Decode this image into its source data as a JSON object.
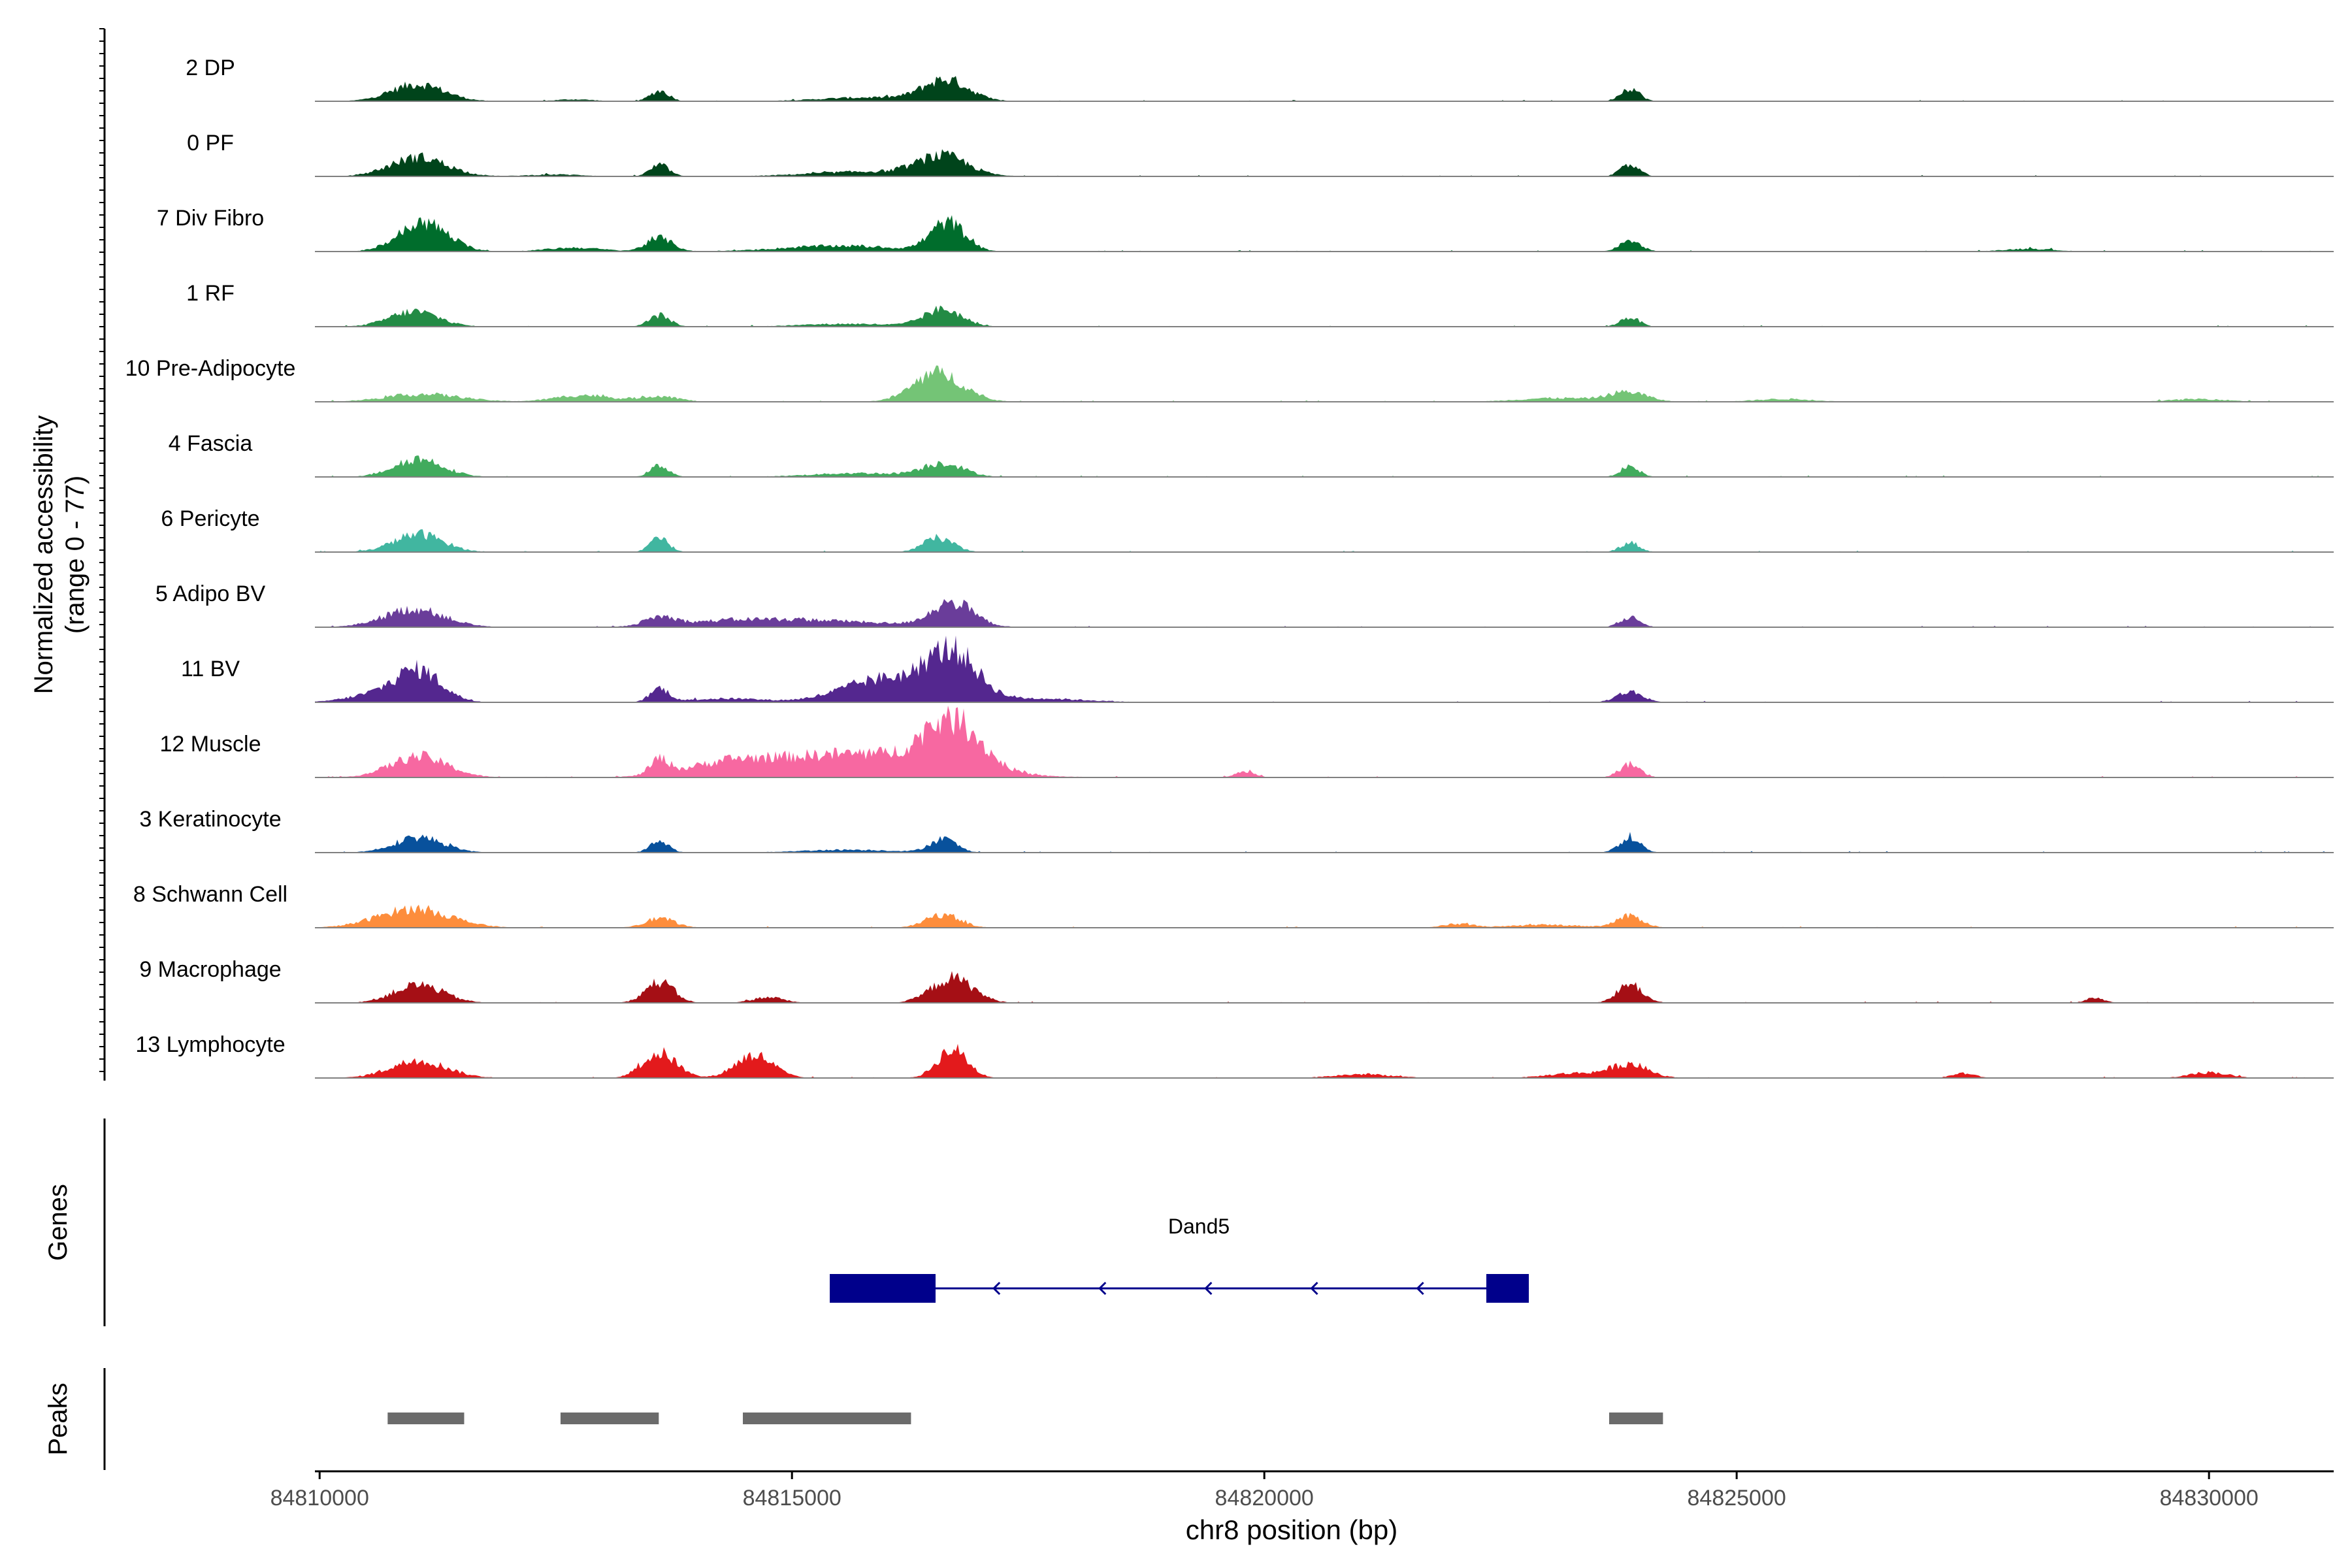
{
  "chart_data": {
    "type": "area",
    "title": "",
    "ylabel_line1": "Normalized accessibility",
    "ylabel_line2": "(range 0 - 77)",
    "xlabel": "chr8 position (bp)",
    "xlim": [
      84809950,
      84831320
    ],
    "ylim": [
      0,
      77
    ],
    "x_ticks": [
      {
        "value": 84810000,
        "label": "84810000"
      },
      {
        "value": 84815000,
        "label": "84815000"
      },
      {
        "value": 84820000,
        "label": "84820000"
      },
      {
        "value": 84825000,
        "label": "84825000"
      },
      {
        "value": 84830000,
        "label": "84830000"
      }
    ],
    "tracks": [
      {
        "name": "2 DP",
        "color": "#00441b",
        "peaks": [
          [
            84811040,
            18,
            280
          ],
          [
            84813600,
            11,
            100
          ],
          [
            84816630,
            22,
            240
          ],
          [
            84823870,
            14,
            100
          ],
          [
            84815800,
            4,
            500
          ],
          [
            84812700,
            2,
            200
          ]
        ]
      },
      {
        "name": "0 PF",
        "color": "#00441b",
        "peaks": [
          [
            84811050,
            20,
            300
          ],
          [
            84813600,
            12,
            100
          ],
          [
            84816600,
            20,
            260
          ],
          [
            84823870,
            12,
            100
          ],
          [
            84815800,
            5,
            600
          ],
          [
            84812500,
            2,
            300
          ]
        ]
      },
      {
        "name": "7 Div Fibro",
        "color": "#006d2c",
        "peaks": [
          [
            84811100,
            30,
            260
          ],
          [
            84813600,
            14,
            140
          ],
          [
            84816650,
            30,
            180
          ],
          [
            84823870,
            10,
            120
          ],
          [
            84815500,
            6,
            600
          ],
          [
            84812700,
            4,
            300
          ],
          [
            84828100,
            3,
            250
          ]
        ]
      },
      {
        "name": "1 RF",
        "color": "#238b45",
        "peaks": [
          [
            84811000,
            16,
            260
          ],
          [
            84813600,
            12,
            110
          ],
          [
            84816600,
            18,
            200
          ],
          [
            84823870,
            10,
            100
          ],
          [
            84815600,
            3,
            500
          ]
        ]
      },
      {
        "name": "10 Pre-Adipocyte",
        "color": "#74c476",
        "peaks": [
          [
            84811100,
            8,
            400
          ],
          [
            84816550,
            30,
            260
          ],
          [
            84812800,
            7,
            300
          ],
          [
            84813600,
            6,
            200
          ],
          [
            84823850,
            10,
            200
          ],
          [
            84823100,
            4,
            400
          ],
          [
            84825500,
            3,
            300
          ],
          [
            84829900,
            3,
            300
          ]
        ]
      },
      {
        "name": "4 Fascia",
        "color": "#41ab5d",
        "peaks": [
          [
            84811050,
            19,
            260
          ],
          [
            84813600,
            12,
            100
          ],
          [
            84816600,
            14,
            220
          ],
          [
            84823870,
            11,
            100
          ],
          [
            84815700,
            4,
            500
          ]
        ]
      },
      {
        "name": "6 Pericyte",
        "color": "#41b6a0",
        "peaks": [
          [
            84811050,
            19,
            260
          ],
          [
            84813600,
            14,
            100
          ],
          [
            84816550,
            15,
            160
          ],
          [
            84823870,
            10,
            100
          ]
        ]
      },
      {
        "name": "5 Adipo BV",
        "color": "#6a3d9a",
        "peaks": [
          [
            84811000,
            19,
            320
          ],
          [
            84813600,
            9,
            160
          ],
          [
            84816700,
            25,
            220
          ],
          [
            84823870,
            10,
            110
          ],
          [
            84815200,
            7,
            800
          ],
          [
            84814300,
            4,
            500
          ]
        ]
      },
      {
        "name": "11 BV",
        "color": "#54278f",
        "peaks": [
          [
            84811050,
            32,
            240
          ],
          [
            84813600,
            14,
            100
          ],
          [
            84816700,
            48,
            260
          ],
          [
            84816000,
            25,
            450
          ],
          [
            84823870,
            11,
            140
          ],
          [
            84814300,
            4,
            400
          ],
          [
            84817600,
            4,
            500
          ],
          [
            84810600,
            8,
            300
          ]
        ]
      },
      {
        "name": "12 Muscle",
        "color": "#f768a1",
        "peaks": [
          [
            84811050,
            22,
            300
          ],
          [
            84813600,
            16,
            100
          ],
          [
            84816700,
            50,
            300
          ],
          [
            84815600,
            25,
            900
          ],
          [
            84814300,
            10,
            400
          ],
          [
            84823870,
            14,
            110
          ],
          [
            84819800,
            6,
            100
          ]
        ]
      },
      {
        "name": "3 Keratinocyte",
        "color": "#08519c",
        "peaks": [
          [
            84811050,
            16,
            260
          ],
          [
            84813600,
            12,
            100
          ],
          [
            84816600,
            14,
            140
          ],
          [
            84823870,
            16,
            110
          ],
          [
            84815600,
            3,
            500
          ]
        ]
      },
      {
        "name": "8 Schwann Cell",
        "color": "#fd8d3c",
        "peaks": [
          [
            84811000,
            20,
            380
          ],
          [
            84813600,
            10,
            160
          ],
          [
            84816600,
            14,
            180
          ],
          [
            84823870,
            12,
            140
          ],
          [
            84822050,
            4,
            160
          ],
          [
            84823000,
            3,
            400
          ]
        ]
      },
      {
        "name": "9 Macrophage",
        "color": "#a50f15",
        "peaks": [
          [
            84811050,
            19,
            260
          ],
          [
            84813600,
            22,
            150
          ],
          [
            84816700,
            26,
            220
          ],
          [
            84823870,
            20,
            130
          ],
          [
            84814750,
            6,
            160
          ],
          [
            84828800,
            5,
            100
          ]
        ]
      },
      {
        "name": "13 Lymphocyte",
        "color": "#e31a1c",
        "peaks": [
          [
            84811050,
            18,
            300
          ],
          [
            84813600,
            26,
            180
          ],
          [
            84814600,
            24,
            200
          ],
          [
            84816700,
            30,
            160
          ],
          [
            84823870,
            14,
            200
          ],
          [
            84823300,
            5,
            300
          ],
          [
            84821050,
            4,
            300
          ],
          [
            84827400,
            5,
            120
          ],
          [
            84830000,
            6,
            200
          ]
        ]
      }
    ],
    "gene": {
      "name": "Dand5",
      "color": "#00008b",
      "start": 84815400,
      "end": 84822800,
      "strand": "-",
      "exons": [
        [
          84815400,
          84816520
        ],
        [
          84822350,
          84822800
        ]
      ]
    },
    "peak_regions": [
      [
        84810720,
        84811530
      ],
      [
        84812550,
        84813590
      ],
      [
        84814480,
        84816260
      ],
      [
        84823650,
        84824220
      ]
    ],
    "panel_labels": {
      "genes": "Genes",
      "peaks": "Peaks"
    }
  }
}
